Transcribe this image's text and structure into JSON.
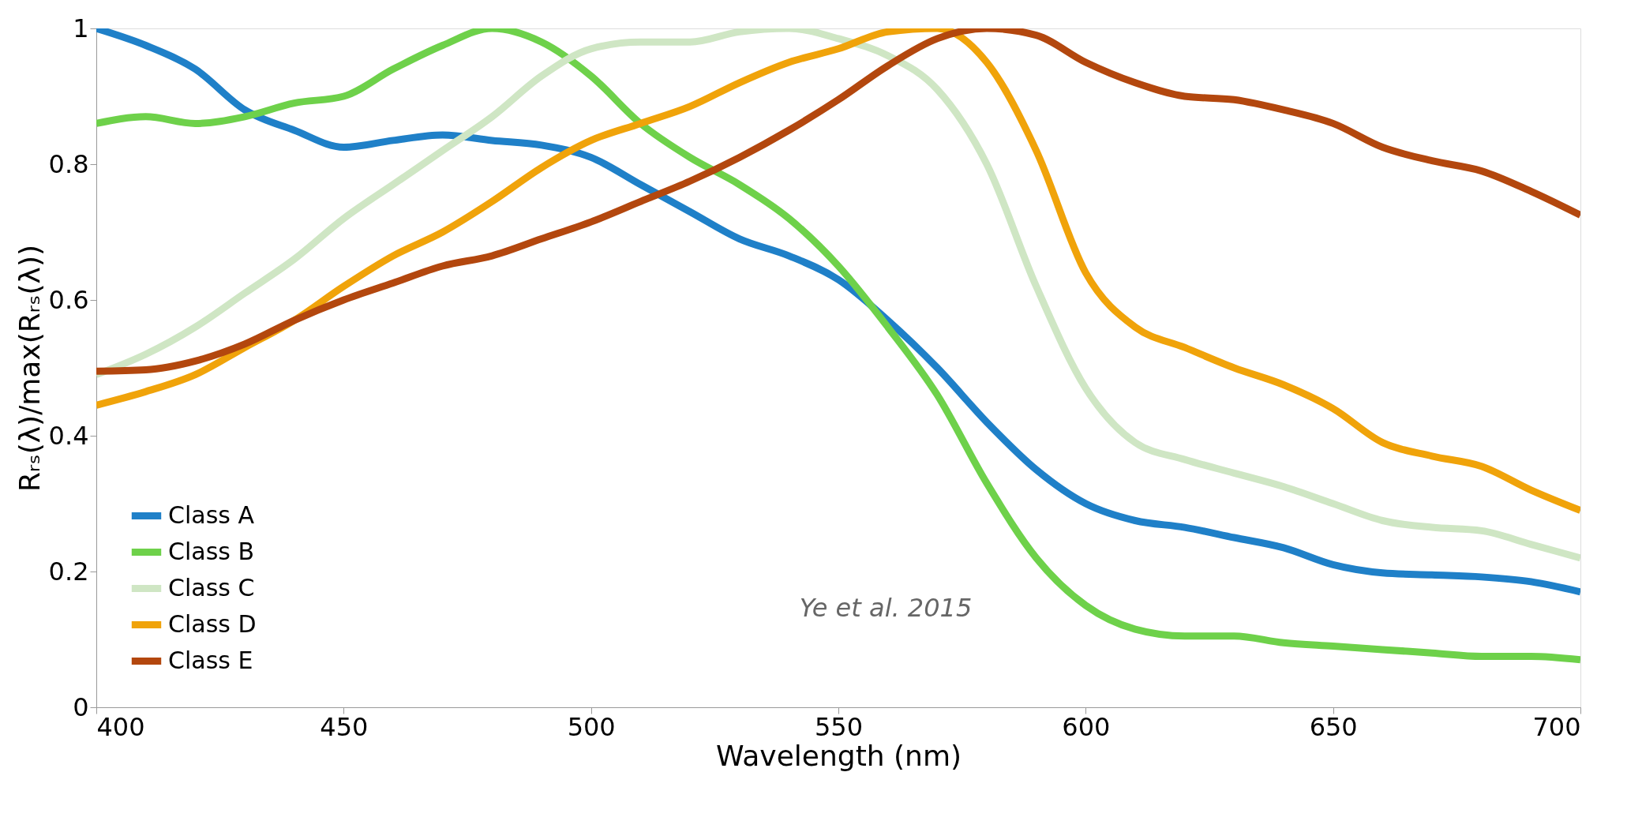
{
  "chart_data": {
    "type": "line",
    "xlabel": "Wavelength (nm)",
    "ylabel": "Rᵣₛ(λ)/max(Rᵣₛ(λ))",
    "x": [
      400,
      410,
      420,
      430,
      440,
      450,
      460,
      470,
      480,
      490,
      500,
      510,
      520,
      530,
      540,
      550,
      560,
      570,
      580,
      590,
      600,
      610,
      620,
      630,
      640,
      650,
      660,
      670,
      680,
      690,
      700
    ],
    "series": [
      {
        "name": "Class A",
        "color": "#1f80c8",
        "values": [
          1.0,
          0.975,
          0.94,
          0.88,
          0.85,
          0.825,
          0.835,
          0.843,
          0.835,
          0.828,
          0.81,
          0.77,
          0.73,
          0.69,
          0.665,
          0.63,
          0.57,
          0.5,
          0.42,
          0.35,
          0.3,
          0.275,
          0.265,
          0.25,
          0.235,
          0.21,
          0.198,
          0.195,
          0.192,
          0.185,
          0.17
        ]
      },
      {
        "name": "Class B",
        "color": "#6ed14a",
        "values": [
          0.86,
          0.87,
          0.86,
          0.87,
          0.89,
          0.9,
          0.94,
          0.975,
          1.0,
          0.98,
          0.93,
          0.86,
          0.81,
          0.77,
          0.72,
          0.65,
          0.56,
          0.46,
          0.33,
          0.22,
          0.15,
          0.115,
          0.105,
          0.105,
          0.095,
          0.09,
          0.085,
          0.08,
          0.075,
          0.075,
          0.07
        ]
      },
      {
        "name": "Class C",
        "color": "#cfe6c4",
        "values": [
          0.49,
          0.52,
          0.56,
          0.61,
          0.66,
          0.72,
          0.77,
          0.82,
          0.87,
          0.93,
          0.97,
          0.98,
          0.98,
          0.995,
          1.0,
          0.985,
          0.96,
          0.91,
          0.8,
          0.62,
          0.47,
          0.39,
          0.365,
          0.345,
          0.325,
          0.3,
          0.275,
          0.265,
          0.26,
          0.24,
          0.22
        ]
      },
      {
        "name": "Class D",
        "color": "#f0a30a",
        "values": [
          0.445,
          0.465,
          0.49,
          0.53,
          0.57,
          0.62,
          0.665,
          0.7,
          0.745,
          0.795,
          0.835,
          0.86,
          0.885,
          0.92,
          0.95,
          0.97,
          0.995,
          1.0,
          0.95,
          0.82,
          0.64,
          0.56,
          0.53,
          0.5,
          0.475,
          0.44,
          0.39,
          0.37,
          0.355,
          0.32,
          0.29
        ]
      },
      {
        "name": "Class E",
        "color": "#b3470e",
        "values": [
          0.495,
          0.497,
          0.51,
          0.535,
          0.57,
          0.6,
          0.625,
          0.65,
          0.665,
          0.69,
          0.715,
          0.745,
          0.775,
          0.81,
          0.85,
          0.895,
          0.945,
          0.985,
          1.0,
          0.99,
          0.95,
          0.92,
          0.9,
          0.895,
          0.88,
          0.86,
          0.825,
          0.805,
          0.79,
          0.76,
          0.725
        ]
      }
    ],
    "xlim": [
      400,
      700
    ],
    "xticks": [
      400,
      450,
      500,
      550,
      600,
      650,
      700
    ],
    "ylim": [
      0,
      1
    ],
    "yticks": [
      0,
      {
        "value": 0.2,
        "label": "0.2"
      },
      {
        "value": 0.4,
        "label": "0.4"
      },
      {
        "value": 0.6,
        "label": "0.6"
      },
      {
        "value": 0.8,
        "label": "0.8"
      },
      1
    ],
    "legend": "bottom left",
    "grid": false,
    "marker": "none",
    "line_style": "solid",
    "annotations": [
      "Ye et al. 2015"
    ]
  }
}
